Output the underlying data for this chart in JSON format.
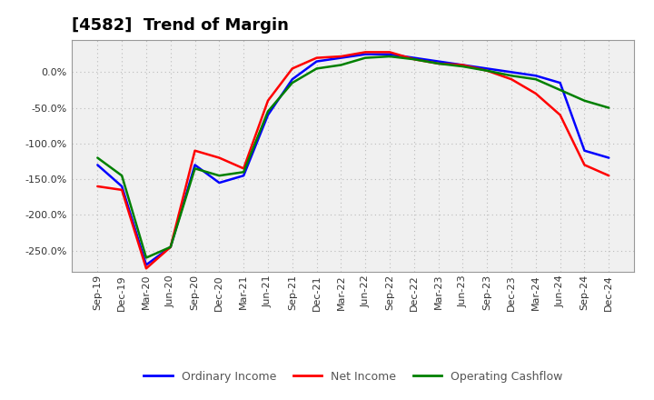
{
  "title": "[4582]  Trend of Margin",
  "x_labels": [
    "Sep-19",
    "Dec-19",
    "Mar-20",
    "Jun-20",
    "Sep-20",
    "Dec-20",
    "Mar-21",
    "Jun-21",
    "Sep-21",
    "Dec-21",
    "Mar-22",
    "Jun-22",
    "Sep-22",
    "Dec-22",
    "Mar-23",
    "Jun-23",
    "Sep-23",
    "Dec-23",
    "Mar-24",
    "Jun-24",
    "Sep-24",
    "Dec-24"
  ],
  "ordinary_income": [
    -130,
    -160,
    -270,
    -245,
    -130,
    -155,
    -145,
    -60,
    -10,
    15,
    20,
    25,
    25,
    20,
    15,
    10,
    5,
    0,
    -5,
    -15,
    -110,
    -120
  ],
  "net_income": [
    -160,
    -165,
    -275,
    -245,
    -110,
    -120,
    -135,
    -40,
    5,
    20,
    22,
    28,
    28,
    18,
    12,
    10,
    2,
    -10,
    -30,
    -60,
    -130,
    -145
  ],
  "operating_cashflow": [
    -120,
    -145,
    -260,
    -245,
    -135,
    -145,
    -140,
    -55,
    -15,
    5,
    10,
    20,
    22,
    18,
    12,
    8,
    2,
    -5,
    -10,
    -25,
    -40,
    -50
  ],
  "colors": {
    "ordinary_income": "#0000ff",
    "net_income": "#ff0000",
    "operating_cashflow": "#008000"
  },
  "ylim": [
    -280,
    45
  ],
  "yticks": [
    0.0,
    -50.0,
    -100.0,
    -150.0,
    -200.0,
    -250.0
  ],
  "plot_bg_color": "#f0f0f0",
  "fig_bg_color": "#ffffff",
  "grid_color": "#bbbbbb",
  "title_fontsize": 13,
  "legend_fontsize": 9,
  "tick_fontsize": 8
}
